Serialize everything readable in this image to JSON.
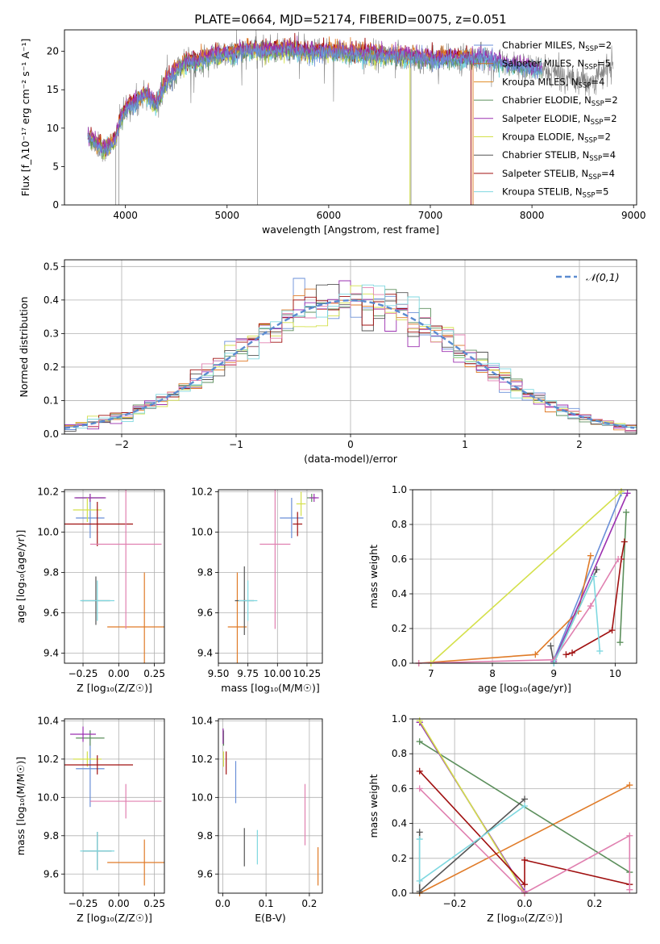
{
  "figure_title": "PLATE=0664, MJD=52174, FIBERID=0075, z=0.051",
  "model_colors": [
    "#6a8fd8",
    "#e07b28",
    "#5c8f5c",
    "#9b30b0",
    "#d4e04a",
    "#555555",
    "#a01010",
    "#e080b0",
    "#7fd8e0"
  ],
  "chart_data": [
    {
      "id": "spectrum",
      "type": "line",
      "xlabel": "wavelength [Angstrom, rest frame]",
      "ylabel": "Flux [f_λ10⁻¹⁷ erg cm⁻² s⁻¹ A⁻¹]",
      "xlim": [
        3400,
        9030
      ],
      "ylim": [
        0,
        22.8
      ],
      "xticks": [
        4000,
        5000,
        6000,
        7000,
        8000,
        9000
      ],
      "yticks": [
        0,
        5,
        10,
        15,
        20
      ],
      "grid": false,
      "legend_position": "top-right",
      "legend": [
        {
          "label": "Chabrier MILES, N",
          "sub": "SSP",
          "suffix": "=2",
          "color": "#6a8fd8"
        },
        {
          "label": "Salpeter MILES, N",
          "sub": "SSP",
          "suffix": "=5",
          "color": "#c07028"
        },
        {
          "label": "Kroupa MILES, N",
          "sub": "SSP",
          "suffix": "=4",
          "color": "#e08a20"
        },
        {
          "label": "Chabrier ELODIE, N",
          "sub": "SSP",
          "suffix": "=2",
          "color": "#5c8f5c"
        },
        {
          "label": "Salpeter ELODIE, N",
          "sub": "SSP",
          "suffix": "=2",
          "color": "#9b30b0"
        },
        {
          "label": "Kroupa ELODIE, N",
          "sub": "SSP",
          "suffix": "=2",
          "color": "#d4e04a"
        },
        {
          "label": "Chabrier STELIB, N",
          "sub": "SSP",
          "suffix": "=4",
          "color": "#555555"
        },
        {
          "label": "Salpeter STELIB, N",
          "sub": "SSP",
          "suffix": "=4",
          "color": "#a01010"
        },
        {
          "label": "Kroupa STELIB, N",
          "sub": "SSP",
          "suffix": "=5",
          "color": "#7fd8e0"
        }
      ],
      "continuum_x": [
        3630,
        3700,
        3800,
        3900,
        3950,
        4000,
        4100,
        4200,
        4300,
        4400,
        4500,
        4600,
        4700,
        4800,
        5000,
        5200,
        5400,
        5600,
        5800,
        6000,
        6200,
        6500,
        6800,
        7000,
        7200,
        7500,
        7800,
        8000,
        8300,
        8600,
        8800
      ],
      "continuum_y": [
        9.0,
        8.0,
        7.2,
        8.5,
        11.0,
        12.5,
        13.5,
        14.5,
        13.0,
        16.0,
        17.5,
        18.8,
        18.6,
        19.2,
        19.6,
        20.2,
        20.0,
        20.3,
        19.8,
        20.0,
        19.8,
        19.5,
        19.3,
        18.9,
        19.0,
        19.3,
        18.2,
        18.0,
        16.8,
        16.2,
        18.3
      ]
    },
    {
      "id": "residuals",
      "type": "histogram",
      "xlabel": "(data-model)/error",
      "ylabel": "Normed distribution",
      "xlim": [
        -2.5,
        2.5
      ],
      "ylim": [
        0,
        0.52
      ],
      "xticks": [
        -2,
        -1,
        0,
        1,
        2
      ],
      "yticks": [
        0.0,
        0.1,
        0.2,
        0.3,
        0.4,
        0.5
      ],
      "grid": true,
      "legend_position": "top-right",
      "legend_label": "𝒩(0,1)",
      "bin_width": 0.1
    },
    {
      "id": "age-vs-Z",
      "type": "scatter",
      "xlabel": "Z [log₁₀(Z/Z☉)]",
      "ylabel": "age  [log₁₀(age/yr)]",
      "xlim": [
        -0.38,
        0.32
      ],
      "ylim": [
        9.35,
        10.21
      ],
      "xticks": [
        -0.25,
        0.0,
        0.25
      ],
      "yticks": [
        9.4,
        9.6,
        9.8,
        10.0,
        10.2
      ],
      "grid": true,
      "points": [
        {
          "x": -0.2,
          "y": 10.07,
          "xerr": 0.1,
          "yerr": 0.1,
          "color": "#6a8fd8"
        },
        {
          "x": 0.18,
          "y": 9.53,
          "xerr": 0.26,
          "yerr": 0.27,
          "color": "#e07b28"
        },
        {
          "x": -0.2,
          "y": 10.17,
          "xerr": 0.1,
          "yerr": 0.02,
          "color": "#5c8f5c"
        },
        {
          "x": -0.2,
          "y": 10.17,
          "xerr": 0.11,
          "yerr": 0.02,
          "color": "#9b30b0"
        },
        {
          "x": -0.22,
          "y": 10.11,
          "xerr": 0.1,
          "yerr": 0.06,
          "color": "#d4e04a"
        },
        {
          "x": -0.16,
          "y": 9.66,
          "xerr": 0.1,
          "yerr": 0.12,
          "color": "#555555"
        },
        {
          "x": -0.15,
          "y": 10.04,
          "xerr": 0.25,
          "yerr": 0.11,
          "color": "#a01010"
        },
        {
          "x": 0.05,
          "y": 9.94,
          "xerr": 0.25,
          "yerr": 0.42,
          "color": "#e080b0"
        },
        {
          "x": -0.15,
          "y": 9.66,
          "xerr": 0.12,
          "yerr": 0.1,
          "color": "#7fd8e0"
        }
      ]
    },
    {
      "id": "age-vs-mass",
      "type": "scatter",
      "xlabel": "mass [log₁₀(M/M☉)]",
      "ylabel": "",
      "xlim": [
        9.5,
        10.38
      ],
      "ylim": [
        9.35,
        10.21
      ],
      "xticks": [
        9.5,
        9.75,
        10.0,
        10.25
      ],
      "xticklabels": [
        "9.50",
        "9.75",
        "10.00",
        "10.25"
      ],
      "yticks": [
        9.4,
        9.6,
        9.8,
        10.0,
        10.2
      ],
      "grid": true,
      "points": [
        {
          "x": 10.12,
          "y": 10.07,
          "xerr": 0.1,
          "yerr": 0.1,
          "color": "#6a8fd8"
        },
        {
          "x": 9.66,
          "y": 9.53,
          "xerr": 0.08,
          "yerr": 0.27,
          "color": "#e07b28"
        },
        {
          "x": 10.29,
          "y": 10.17,
          "xerr": 0.04,
          "yerr": 0.02,
          "color": "#5c8f5c"
        },
        {
          "x": 10.31,
          "y": 10.17,
          "xerr": 0.04,
          "yerr": 0.02,
          "color": "#9b30b0"
        },
        {
          "x": 10.2,
          "y": 10.14,
          "xerr": 0.04,
          "yerr": 0.06,
          "color": "#d4e04a"
        },
        {
          "x": 9.72,
          "y": 9.66,
          "xerr": 0.08,
          "yerr": 0.17,
          "color": "#555555"
        },
        {
          "x": 10.17,
          "y": 10.04,
          "xerr": 0.04,
          "yerr": 0.06,
          "color": "#a01010"
        },
        {
          "x": 9.98,
          "y": 9.94,
          "xerr": 0.13,
          "yerr": 0.42,
          "color": "#e080b0"
        },
        {
          "x": 9.75,
          "y": 9.66,
          "xerr": 0.08,
          "yerr": 0.1,
          "color": "#7fd8e0"
        }
      ]
    },
    {
      "id": "mass-weight-vs-age",
      "type": "line",
      "xlabel": "age  [log₁₀(age/yr)]",
      "ylabel": "mass weight",
      "xlim": [
        6.7,
        10.35
      ],
      "ylim": [
        0,
        1.0
      ],
      "xticks": [
        7,
        8,
        9,
        10
      ],
      "yticks": [
        0.0,
        0.2,
        0.4,
        0.6,
        0.8,
        1.0
      ],
      "grid": true,
      "series": [
        {
          "color": "#6a8fd8",
          "x": [
            9.0,
            10.1
          ],
          "y": [
            0.02,
            0.98
          ]
        },
        {
          "color": "#e07b28",
          "x": [
            6.8,
            8.7,
            9.4,
            9.6
          ],
          "y": [
            0.0,
            0.05,
            0.3,
            0.62
          ]
        },
        {
          "color": "#5c8f5c",
          "x": [
            10.08,
            10.18
          ],
          "y": [
            0.12,
            0.87
          ]
        },
        {
          "color": "#9b30b0",
          "x": [
            9.0,
            10.2
          ],
          "y": [
            0.01,
            0.98
          ]
        },
        {
          "color": "#d4e04a",
          "x": [
            7.0,
            10.1
          ],
          "y": [
            0.0,
            0.99
          ]
        },
        {
          "color": "#555555",
          "x": [
            8.95,
            9.0,
            9.7
          ],
          "y": [
            0.1,
            0.0,
            0.54
          ]
        },
        {
          "color": "#a01010",
          "x": [
            9.2,
            9.3,
            9.95,
            10.1,
            10.15
          ],
          "y": [
            0.05,
            0.06,
            0.19,
            0.6,
            0.7
          ]
        },
        {
          "color": "#e080b0",
          "x": [
            6.8,
            9.0,
            9.6,
            10.05
          ],
          "y": [
            0.0,
            0.02,
            0.33,
            0.6
          ]
        },
        {
          "color": "#7fd8e0",
          "x": [
            9.0,
            9.65,
            9.75
          ],
          "y": [
            0.0,
            0.5,
            0.07
          ]
        }
      ]
    },
    {
      "id": "mass-vs-Z",
      "type": "scatter",
      "xlabel": "Z [log₁₀(Z/Z☉)]",
      "ylabel": "mass [log₁₀(M/M☉)]",
      "xlim": [
        -0.38,
        0.32
      ],
      "ylim": [
        9.5,
        10.41
      ],
      "xticks": [
        -0.25,
        0.0,
        0.25
      ],
      "yticks": [
        9.6,
        9.8,
        10.0,
        10.2,
        10.4
      ],
      "grid": true,
      "points": [
        {
          "x": -0.2,
          "y": 10.15,
          "xerr": 0.1,
          "yerr": 0.2,
          "color": "#6a8fd8"
        },
        {
          "x": 0.18,
          "y": 9.66,
          "xerr": 0.26,
          "yerr": 0.12,
          "color": "#e07b28"
        },
        {
          "x": -0.2,
          "y": 10.31,
          "xerr": 0.1,
          "yerr": 0.04,
          "color": "#5c8f5c"
        },
        {
          "x": -0.25,
          "y": 10.33,
          "xerr": 0.09,
          "yerr": 0.04,
          "color": "#9b30b0"
        },
        {
          "x": -0.22,
          "y": 10.2,
          "xerr": 0.1,
          "yerr": 0.04,
          "color": "#d4e04a"
        },
        {
          "x": -0.15,
          "y": 9.72,
          "xerr": 0.1,
          "yerr": 0.1,
          "color": "#555555"
        },
        {
          "x": -0.15,
          "y": 10.17,
          "xerr": 0.25,
          "yerr": 0.05,
          "color": "#a01010"
        },
        {
          "x": 0.05,
          "y": 9.98,
          "xerr": 0.25,
          "yerr": 0.09,
          "color": "#e080b0"
        },
        {
          "x": -0.15,
          "y": 9.72,
          "xerr": 0.12,
          "yerr": 0.1,
          "color": "#7fd8e0"
        }
      ]
    },
    {
      "id": "mass-vs-EBV",
      "type": "scatter",
      "xlabel": "E(B-V)",
      "ylabel": "",
      "xlim": [
        -0.01,
        0.23
      ],
      "ylim": [
        9.5,
        10.41
      ],
      "xticks": [
        0.0,
        0.1,
        0.2
      ],
      "yticks": [
        9.6,
        9.8,
        10.0,
        10.2,
        10.4
      ],
      "grid": true,
      "points": [
        {
          "x": 0.03,
          "y": 10.08,
          "xerr": 0.0,
          "yerr": 0.11,
          "color": "#6a8fd8"
        },
        {
          "x": 0.22,
          "y": 9.64,
          "xerr": 0.0,
          "yerr": 0.1,
          "color": "#e07b28"
        },
        {
          "x": 0.002,
          "y": 10.31,
          "xerr": 0.0,
          "yerr": 0.04,
          "color": "#5c8f5c"
        },
        {
          "x": 0.001,
          "y": 10.32,
          "xerr": 0.0,
          "yerr": 0.04,
          "color": "#9b30b0"
        },
        {
          "x": 0.002,
          "y": 10.2,
          "xerr": 0.0,
          "yerr": 0.04,
          "color": "#d4e04a"
        },
        {
          "x": 0.05,
          "y": 9.74,
          "xerr": 0.0,
          "yerr": 0.1,
          "color": "#555555"
        },
        {
          "x": 0.008,
          "y": 10.18,
          "xerr": 0.0,
          "yerr": 0.06,
          "color": "#a01010"
        },
        {
          "x": 0.19,
          "y": 9.91,
          "xerr": 0.0,
          "yerr": 0.16,
          "color": "#e080b0"
        },
        {
          "x": 0.08,
          "y": 9.74,
          "xerr": 0.0,
          "yerr": 0.09,
          "color": "#7fd8e0"
        }
      ]
    },
    {
      "id": "mass-weight-vs-Z",
      "type": "line",
      "xlabel": "Z [log₁₀(Z/Z☉)]",
      "ylabel": "mass weight",
      "xlim": [
        -0.32,
        0.32
      ],
      "ylim": [
        0,
        1.0
      ],
      "xticks": [
        -0.2,
        0.0,
        0.2
      ],
      "yticks": [
        0.0,
        0.2,
        0.4,
        0.6,
        0.8,
        1.0
      ],
      "grid": true,
      "series": [
        {
          "color": "#6a8fd8",
          "x": [
            -0.3,
            0.0
          ],
          "y": [
            0.98,
            0.01
          ]
        },
        {
          "color": "#e07b28",
          "x": [
            -0.3,
            0.3
          ],
          "y": [
            0.0,
            0.62
          ]
        },
        {
          "color": "#5c8f5c",
          "x": [
            -0.3,
            0.3
          ],
          "y": [
            0.87,
            0.12
          ]
        },
        {
          "color": "#9b30b0",
          "x": [
            -0.3,
            0.0
          ],
          "y": [
            0.98,
            0.01
          ]
        },
        {
          "color": "#d4e04a",
          "x": [
            -0.3,
            0.0
          ],
          "y": [
            0.99,
            0.0
          ]
        },
        {
          "color": "#555555",
          "x": [
            -0.3,
            -0.3,
            0.0
          ],
          "y": [
            0.35,
            0.01,
            0.54
          ]
        },
        {
          "color": "#a01010",
          "x": [
            -0.3,
            0.0,
            0.0,
            0.3
          ],
          "y": [
            0.7,
            0.05,
            0.19,
            0.05
          ]
        },
        {
          "color": "#e080b0",
          "x": [
            -0.3,
            0.0,
            0.3,
            0.3
          ],
          "y": [
            0.6,
            0.0,
            0.33,
            0.02
          ]
        },
        {
          "color": "#7fd8e0",
          "x": [
            -0.3,
            -0.3,
            0.0
          ],
          "y": [
            0.31,
            0.07,
            0.5
          ]
        }
      ]
    }
  ]
}
